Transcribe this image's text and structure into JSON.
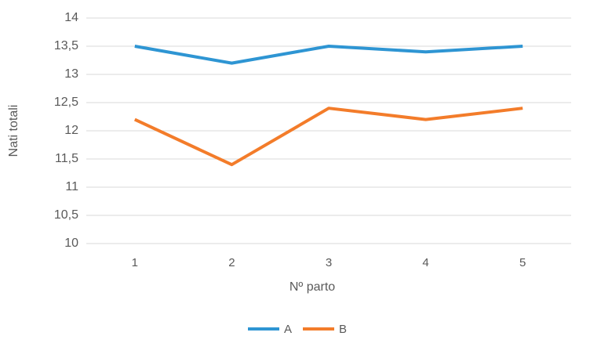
{
  "chart_data": {
    "type": "line",
    "x_label": "Nº parto",
    "y_label": "Nati totali",
    "categories": [
      "1",
      "2",
      "3",
      "4",
      "5"
    ],
    "series": [
      {
        "name": "A",
        "color": "#2e95d3",
        "values": [
          13.5,
          13.2,
          13.5,
          13.4,
          13.5
        ]
      },
      {
        "name": "B",
        "color": "#f37c2a",
        "values": [
          12.2,
          11.4,
          12.4,
          12.2,
          12.4
        ]
      }
    ],
    "ylim": [
      10,
      14
    ],
    "yticks": [
      10,
      {
        "value": 10.5,
        "label": "10,5"
      },
      11,
      {
        "value": 11.5,
        "label": "11,5"
      },
      12,
      {
        "value": 12.5,
        "label": "12,5"
      },
      13,
      {
        "value": 13.5,
        "label": "13,5"
      },
      14
    ],
    "grid": true,
    "legend": "bottom"
  }
}
